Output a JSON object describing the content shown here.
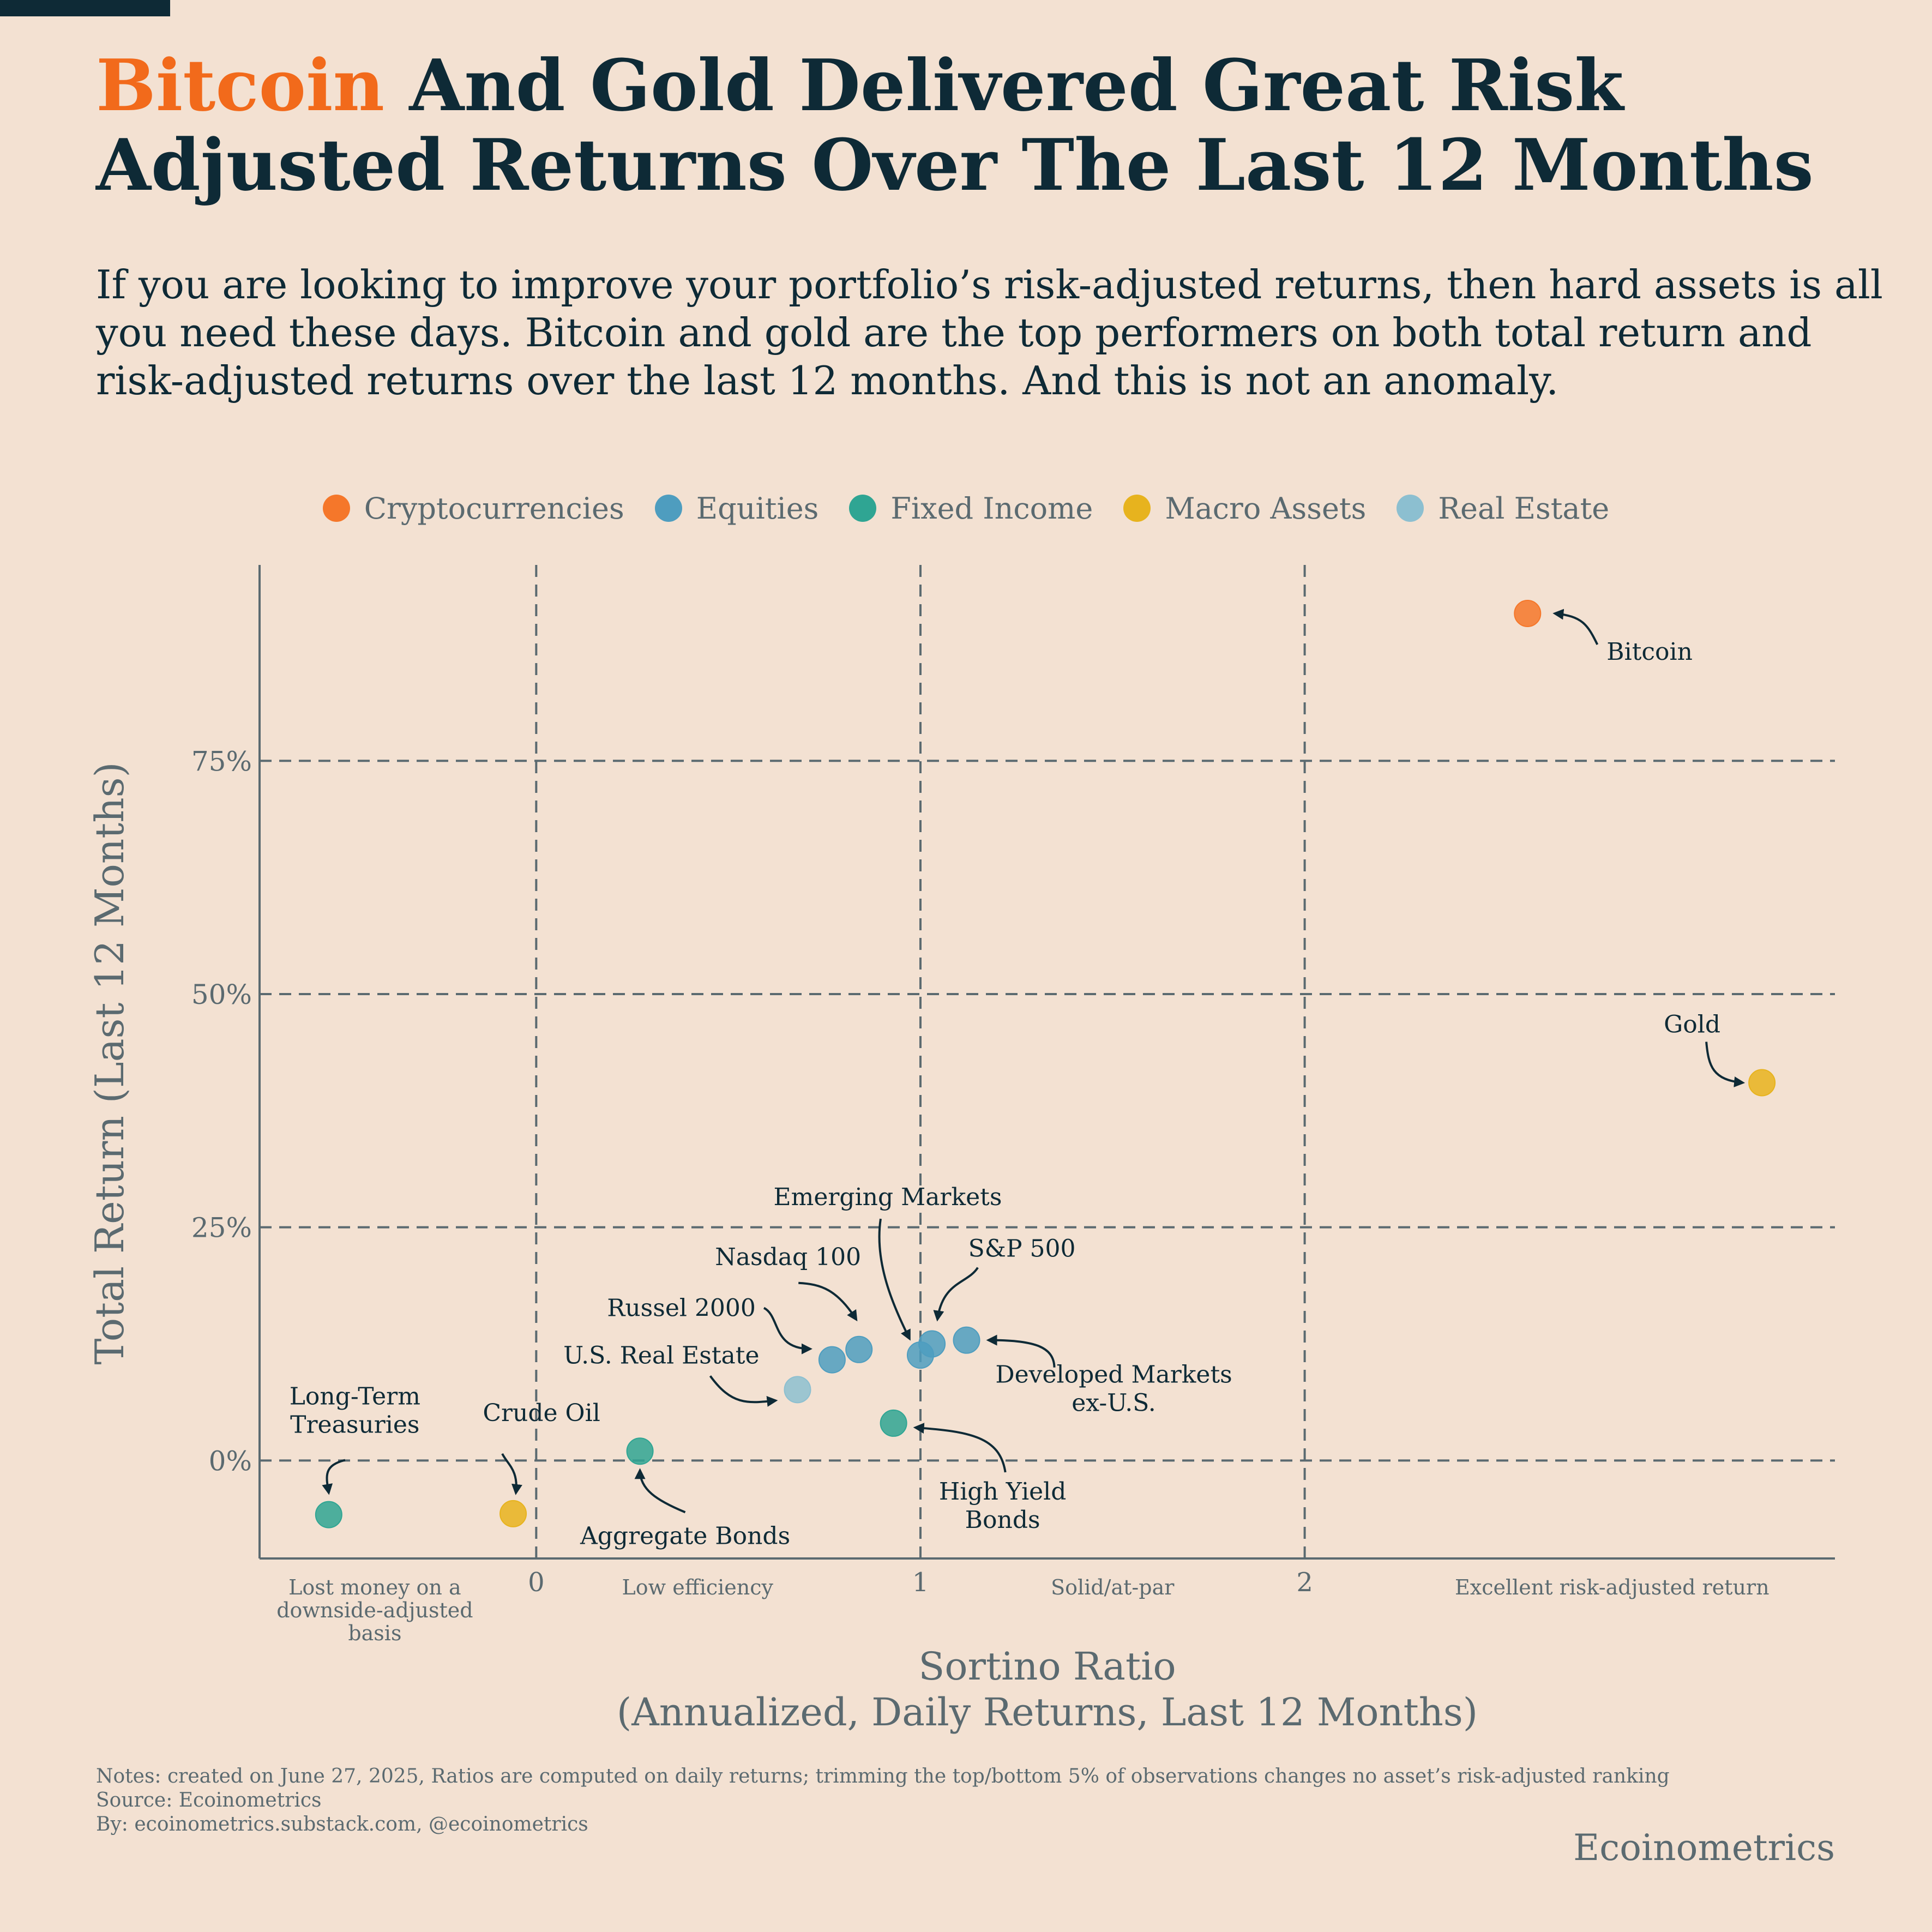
{
  "header": {
    "title_accent": "Bitcoin",
    "title_rest": " And Gold Delivered Great Risk Adjusted Returns Over The Last 12 Months",
    "subtitle": "If you are looking to improve your portfolio’s risk-adjusted returns, then hard assets is all you need these days. Bitcoin and gold are the top performers on both total return and risk-adjusted returns over the last 12 months. And this is not an anomaly."
  },
  "colors": {
    "background": "#f3e1d2",
    "title_dark": "#0e2a36",
    "title_accent": "#f26a1b",
    "muted_text": "#5b6a70"
  },
  "legend": {
    "items": [
      {
        "label": "Cryptocurrencies",
        "color": "#f5772a"
      },
      {
        "label": "Equities",
        "color": "#4e9dbf"
      },
      {
        "label": "Fixed Income",
        "color": "#2fa593"
      },
      {
        "label": "Macro Assets",
        "color": "#e7b31e"
      },
      {
        "label": "Real Estate",
        "color": "#8cbfd0"
      }
    ]
  },
  "chart_data": {
    "type": "scatter",
    "xlabel_line1": "Sortino Ratio",
    "xlabel_line2": "(Annualized, Daily Returns, Last 12 Months)",
    "ylabel": "Total Return (Last 12 Months)",
    "xlim": [
      -0.72,
      3.38
    ],
    "ylim": [
      -10.5,
      96
    ],
    "x_ticks": [
      {
        "value": 0,
        "label": "0"
      },
      {
        "value": 1,
        "label": "1"
      },
      {
        "value": 2,
        "label": "2"
      }
    ],
    "y_ticks": [
      {
        "value": 0,
        "label": "0%"
      },
      {
        "value": 25,
        "label": "25%"
      },
      {
        "value": 50,
        "label": "50%"
      },
      {
        "value": 75,
        "label": "75%"
      }
    ],
    "zone_labels": [
      {
        "x": -0.42,
        "lines": [
          "Lost money on a",
          "downside-adjusted",
          "basis"
        ]
      },
      {
        "x": 0.42,
        "lines": [
          "Low efficiency"
        ]
      },
      {
        "x": 1.5,
        "lines": [
          "Solid/at-par"
        ]
      },
      {
        "x": 2.8,
        "lines": [
          "Excellent risk-adjusted return"
        ]
      }
    ],
    "grid": "dashed at x = 0, 1, 2 and y = 0%, 25%, 50%, 75%",
    "points": [
      {
        "name": "Bitcoin",
        "category": "Cryptocurrencies",
        "x": 2.58,
        "y": 90.8
      },
      {
        "name": "Gold",
        "category": "Macro Assets",
        "x": 3.19,
        "y": 40.5
      },
      {
        "name": "Crude Oil",
        "category": "Macro Assets",
        "x": -0.06,
        "y": -5.7
      },
      {
        "name": "Long-Term Treasuries",
        "category": "Fixed Income",
        "x": -0.54,
        "y": -5.8
      },
      {
        "name": "Aggregate Bonds",
        "category": "Fixed Income",
        "x": 0.27,
        "y": 1.0
      },
      {
        "name": "High Yield Bonds",
        "category": "Fixed Income",
        "x": 0.93,
        "y": 4.0
      },
      {
        "name": "U.S. Real Estate",
        "category": "Real Estate",
        "x": 0.68,
        "y": 7.6
      },
      {
        "name": "Russel 2000",
        "category": "Equities",
        "x": 0.77,
        "y": 10.8
      },
      {
        "name": "Nasdaq 100",
        "category": "Equities",
        "x": 0.84,
        "y": 11.9
      },
      {
        "name": "Emerging Markets",
        "category": "Equities",
        "x": 1.0,
        "y": 11.3
      },
      {
        "name": "S&P 500",
        "category": "Equities",
        "x": 1.03,
        "y": 12.5
      },
      {
        "name": "Developed Markets ex-U.S.",
        "category": "Equities",
        "x": 1.12,
        "y": 12.9
      }
    ],
    "annotations": [
      {
        "point": "Bitcoin",
        "lines": [
          "Bitcoin"
        ]
      },
      {
        "point": "Gold",
        "lines": [
          "Gold"
        ]
      },
      {
        "point": "Emerging Markets",
        "lines": [
          "Emerging Markets"
        ]
      },
      {
        "point": "S&P 500",
        "lines": [
          "S&P 500"
        ]
      },
      {
        "point": "Nasdaq 100",
        "lines": [
          "Nasdaq 100"
        ]
      },
      {
        "point": "Russel 2000",
        "lines": [
          "Russel 2000"
        ]
      },
      {
        "point": "U.S. Real Estate",
        "lines": [
          "U.S. Real Estate"
        ]
      },
      {
        "point": "Developed Markets ex-U.S.",
        "lines": [
          "Developed Markets",
          "ex-U.S."
        ]
      },
      {
        "point": "Long-Term Treasuries",
        "lines": [
          "Long-Term",
          "Treasuries"
        ]
      },
      {
        "point": "Crude Oil",
        "lines": [
          "Crude Oil"
        ]
      },
      {
        "point": "High Yield Bonds",
        "lines": [
          "High Yield",
          "Bonds"
        ]
      },
      {
        "point": "Aggregate Bonds",
        "lines": [
          "Aggregate Bonds"
        ]
      }
    ]
  },
  "footer": {
    "notes": "Notes: created on June 27, 2025, Ratios are computed on daily returns; trimming the top/bottom 5% of observations changes no asset’s risk-adjusted ranking",
    "source": "Source: Ecoinometrics",
    "by": "By: ecoinometrics.substack.com, @ecoinometrics",
    "brand": "Ecoinometrics"
  }
}
